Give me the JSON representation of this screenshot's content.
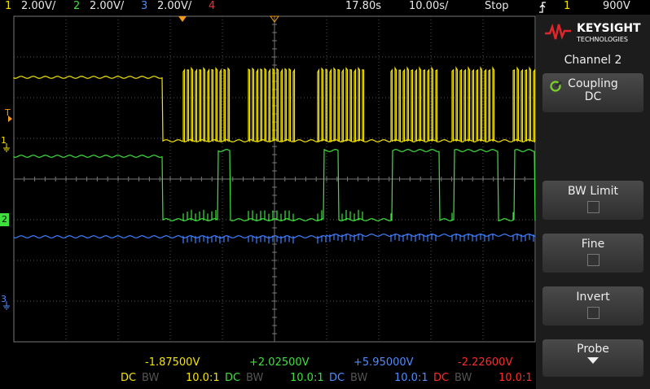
{
  "status_bar": {
    "channels": [
      {
        "number": "1",
        "scale": "2.00V/"
      },
      {
        "number": "2",
        "scale": "2.00V/"
      },
      {
        "number": "3",
        "scale": "2.00V/"
      },
      {
        "number": "4"
      }
    ],
    "delay": "17.80s",
    "timebase": "10.00s/",
    "run_state": "Stop",
    "trigger_source": "1",
    "trigger_level": "900V"
  },
  "markers": {
    "trigger": "T",
    "ch1": "1",
    "ch2": "2",
    "ch3": "3"
  },
  "softkeys": {
    "brand": "KEYSIGHT",
    "brand_sub": "TECHNOLOGIES",
    "menu_title": "Channel 2",
    "buttons": [
      {
        "label": "Coupling",
        "value": "DC"
      },
      {
        "label": "BW Limit"
      },
      {
        "label": "Fine"
      },
      {
        "label": "Invert"
      },
      {
        "label": "Probe"
      }
    ]
  },
  "channel_info": [
    {
      "offset": "-1.87500V",
      "coupling": "DC",
      "bw": "BW",
      "probe": "10.0:1"
    },
    {
      "offset": "+2.02500V",
      "coupling": "DC",
      "bw": "BW",
      "probe": "10.0:1"
    },
    {
      "offset": "+5.95000V",
      "coupling": "DC",
      "bw": "BW",
      "probe": "10.0:1"
    },
    {
      "offset": "-2.22600V",
      "coupling": "DC",
      "bw": "BW",
      "probe": "10.0:1"
    }
  ]
}
